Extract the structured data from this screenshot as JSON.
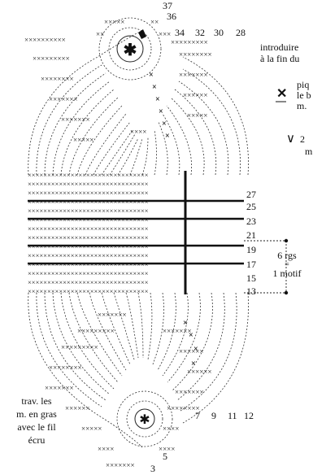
{
  "labels": {
    "num_37": "37",
    "num_36": "36",
    "num_34": "34",
    "num_32": "32",
    "num_30": "30",
    "num_28": "28",
    "row_27": "27",
    "row_25": "25",
    "row_23": "23",
    "row_21": "21",
    "row_19": "19",
    "row_17": "17",
    "row_15": "15",
    "row_13": "13",
    "num_7": "7",
    "num_9": "9",
    "num_11": "11",
    "num_12": "12",
    "num_5": "5",
    "num_3": "3",
    "rgs_6": "6 rgs",
    "eq": "=",
    "one_motif": "1 motif",
    "intro_line1": "introduire",
    "intro_line2": "à la fin du",
    "legend_x_line1": "piq",
    "legend_x_line2": "le b",
    "legend_x_line3": "m.",
    "legend_v_line1": "2",
    "legend_v_line2": "m",
    "trav_line1": "trav. les",
    "trav_line2": "m. en gras",
    "trav_line3": "avec le fil",
    "trav_line4": "écru"
  },
  "symbols": {
    "cross": "×",
    "cross_bold": "✕",
    "v": "∨",
    "star": "✱"
  },
  "colors": {
    "ink": "#1a1a1a",
    "bold_row": "#111111",
    "light": "#555555"
  }
}
